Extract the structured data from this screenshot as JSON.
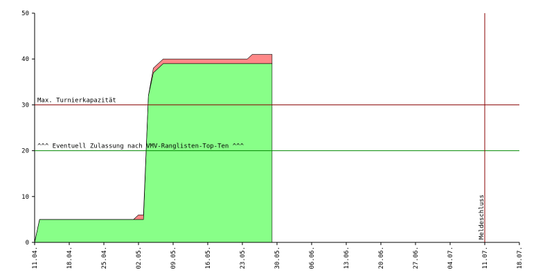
{
  "chart_data": {
    "type": "stacked-area",
    "x": [
      "11.04.",
      "12.04.",
      "01.05.",
      "02.05.",
      "03.05.",
      "04.05.",
      "05.05.",
      "07.05.",
      "24.05.",
      "25.05.",
      "29.05."
    ],
    "series": [
      {
        "color": "#88ff88",
        "values": [
          0,
          5,
          5,
          5,
          5,
          32,
          37,
          39,
          39,
          39,
          39
        ]
      },
      {
        "color": "#ff8888",
        "values": [
          0,
          0,
          0,
          1,
          1,
          0,
          1,
          1,
          1,
          2,
          2
        ]
      }
    ],
    "xlim": [
      "11.04.",
      "18.07."
    ],
    "xticks": [
      "11.04.",
      "18.04.",
      "25.04.",
      "02.05.",
      "09.05.",
      "16.05.",
      "23.05.",
      "30.05.",
      "06.06.",
      "13.06.",
      "20.06.",
      "27.06.",
      "04.07.",
      "11.07.",
      "18.07."
    ],
    "ylim": [
      0,
      50
    ],
    "yticks": [
      0,
      10,
      20,
      30,
      40,
      50
    ],
    "hlines": [
      {
        "value": 30,
        "label": "Max. Turnierkapazität",
        "color": "#880000"
      },
      {
        "value": 20,
        "label": "^^^ Eventuell Zulassung nach VMV-Ranglisten-Top-Ten ^^^",
        "color": "#008800"
      }
    ],
    "vlines": [
      {
        "x": "11.07.",
        "label": "Meldeschluss",
        "color": "#880000"
      }
    ]
  }
}
